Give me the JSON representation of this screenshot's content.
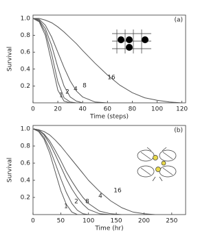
{
  "chart_data": [
    {
      "type": "line",
      "panel_label": "(a)",
      "x_label": "Time (steps)",
      "y_label": "Survival",
      "x": [
        0,
        5,
        10,
        15,
        20,
        25,
        30,
        35,
        40,
        50,
        60,
        70,
        80,
        90,
        100,
        110,
        120
      ],
      "series": [
        {
          "name": "1",
          "color": "#555555",
          "values": [
            1,
            0.96,
            0.8,
            0.48,
            0.15,
            0.02,
            0,
            0,
            0,
            0,
            0,
            0,
            0,
            0,
            0,
            0,
            0
          ]
        },
        {
          "name": "2",
          "color": "#555555",
          "values": [
            1,
            0.97,
            0.84,
            0.58,
            0.25,
            0.06,
            0.01,
            0,
            0,
            0,
            0,
            0,
            0,
            0,
            0,
            0,
            0
          ]
        },
        {
          "name": "4",
          "color": "#555555",
          "values": [
            1,
            0.98,
            0.88,
            0.68,
            0.42,
            0.2,
            0.07,
            0.02,
            0,
            0,
            0,
            0,
            0,
            0,
            0,
            0,
            0
          ]
        },
        {
          "name": "8",
          "color": "#555555",
          "values": [
            1,
            0.99,
            0.92,
            0.78,
            0.6,
            0.42,
            0.26,
            0.14,
            0.07,
            0.01,
            0,
            0,
            0,
            0,
            0,
            0,
            0
          ]
        },
        {
          "name": "16",
          "color": "#555555",
          "values": [
            1,
            1,
            0.98,
            0.95,
            0.9,
            0.84,
            0.77,
            0.7,
            0.62,
            0.47,
            0.33,
            0.21,
            0.12,
            0.06,
            0.03,
            0.01,
            0
          ]
        }
      ],
      "xlim": [
        0,
        123
      ],
      "ylim": [
        0,
        1.04
      ],
      "xticks": [
        0,
        20,
        40,
        60,
        80,
        100,
        120
      ],
      "yticks": [
        {
          "value": 1,
          "label": "1.0"
        },
        0.8,
        0.6,
        0.4,
        0.2
      ]
    },
    {
      "type": "line",
      "panel_label": "(b)",
      "x_label": "Time (hr)",
      "y_label": "Survival",
      "x": [
        0,
        10,
        20,
        30,
        40,
        50,
        60,
        70,
        80,
        90,
        100,
        120,
        140,
        160,
        180,
        200,
        220
      ],
      "series": [
        {
          "name": "1",
          "color": "#555555",
          "values": [
            1,
            0.97,
            0.88,
            0.72,
            0.5,
            0.28,
            0.12,
            0.03,
            0,
            0,
            0,
            0,
            0,
            0,
            0,
            0,
            0
          ]
        },
        {
          "name": "2",
          "color": "#555555",
          "values": [
            1,
            0.98,
            0.9,
            0.77,
            0.6,
            0.42,
            0.26,
            0.13,
            0.05,
            0.01,
            0,
            0,
            0,
            0,
            0,
            0,
            0
          ]
        },
        {
          "name": "4",
          "color": "#555555",
          "values": [
            1,
            0.99,
            0.94,
            0.86,
            0.75,
            0.63,
            0.5,
            0.39,
            0.29,
            0.2,
            0.13,
            0.04,
            0.01,
            0,
            0,
            0,
            0
          ]
        },
        {
          "name": "8",
          "color": "#555555",
          "values": [
            1,
            0.99,
            0.93,
            0.83,
            0.7,
            0.56,
            0.42,
            0.3,
            0.2,
            0.12,
            0.06,
            0.01,
            0,
            0,
            0,
            0,
            0
          ]
        },
        {
          "name": "16",
          "color": "#555555",
          "values": [
            1,
            0.99,
            0.97,
            0.93,
            0.87,
            0.8,
            0.72,
            0.64,
            0.56,
            0.48,
            0.4,
            0.27,
            0.16,
            0.08,
            0.03,
            0.01,
            0
          ]
        }
      ],
      "xlim": [
        0,
        275
      ],
      "ylim": [
        0,
        1.04
      ],
      "xticks": [
        0,
        50,
        100,
        150,
        200,
        250
      ],
      "yticks": [
        {
          "value": 1,
          "label": "1.0"
        },
        0.8,
        0.6,
        0.4,
        0.2
      ]
    }
  ]
}
